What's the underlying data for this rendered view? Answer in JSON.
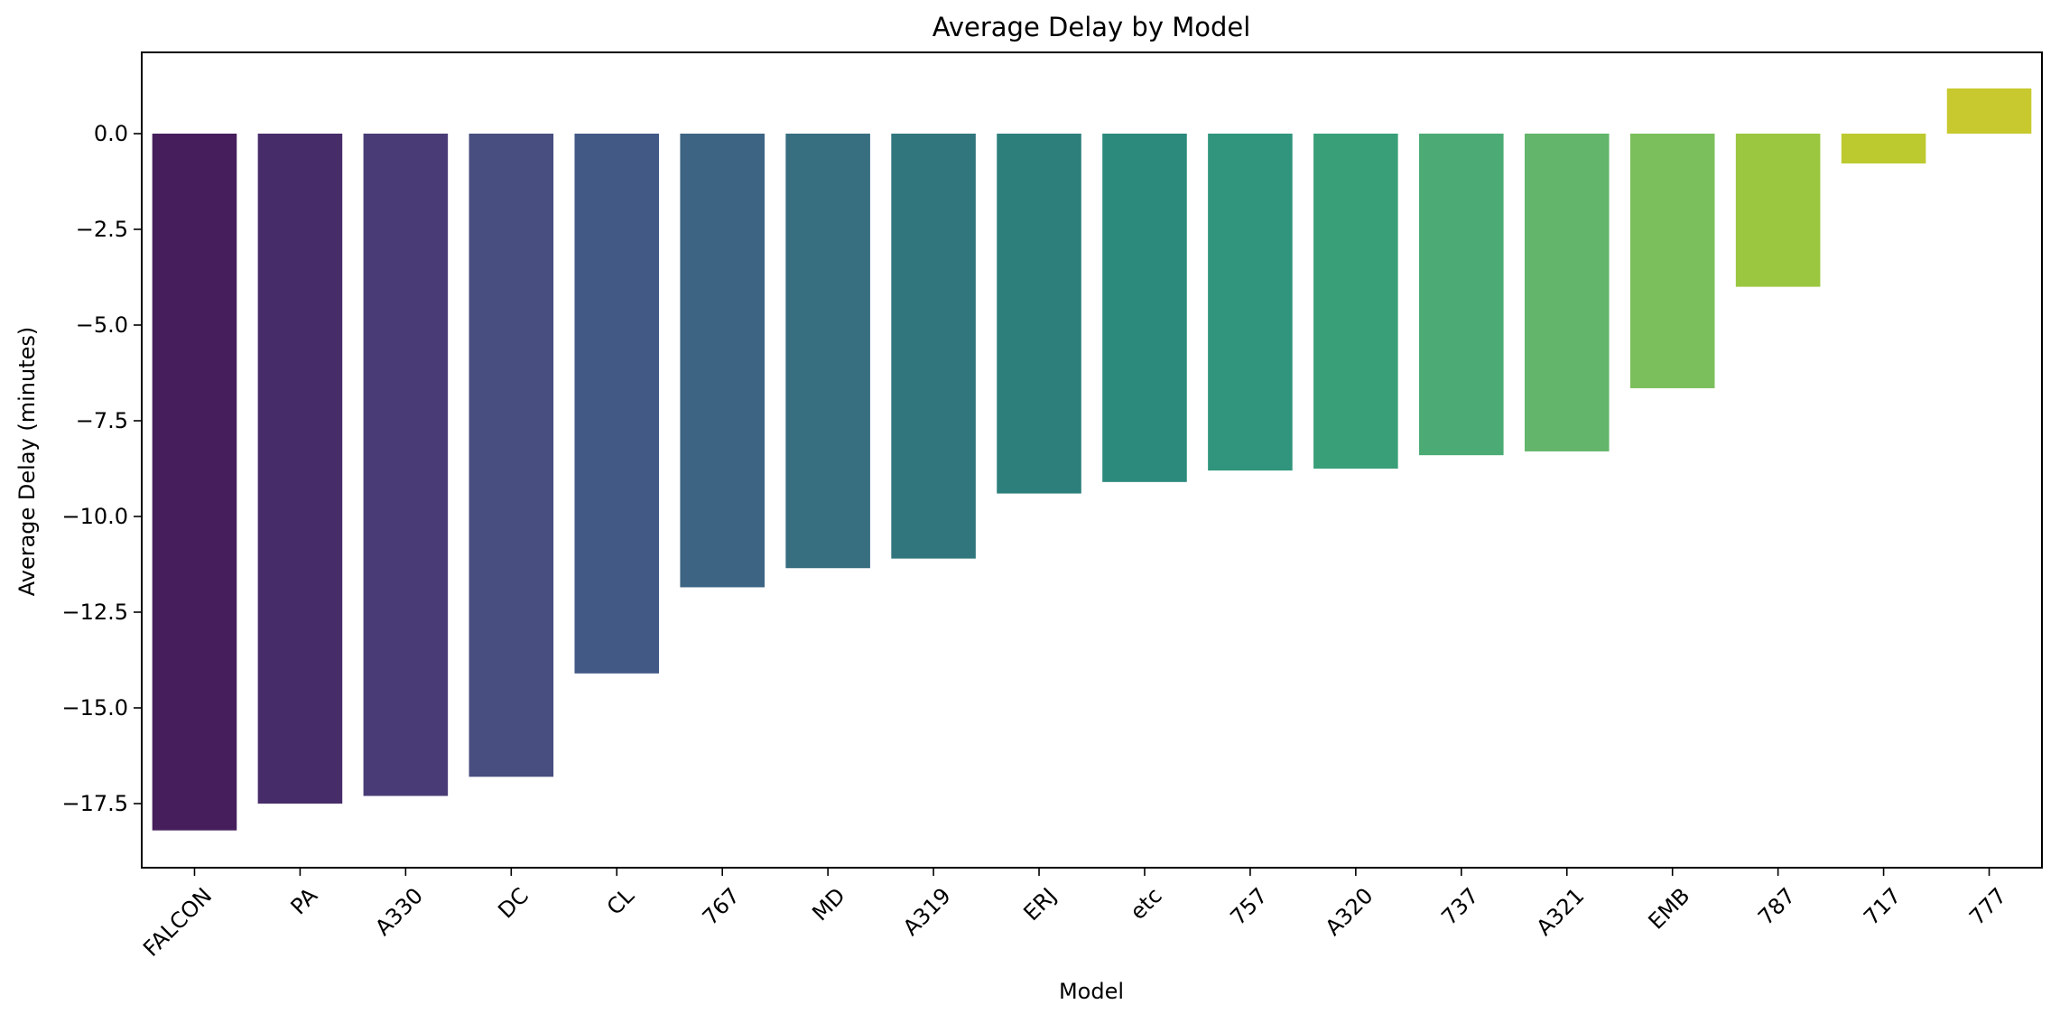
{
  "chart_data": {
    "type": "bar",
    "title": "Average Delay by Model",
    "xlabel": "Model",
    "ylabel": "Average Delay (minutes)",
    "categories": [
      "FALCON",
      "PA",
      "A330",
      "DC",
      "CL",
      "767",
      "MD",
      "A319",
      "ERJ",
      "etc",
      "757",
      "A320",
      "737",
      "A321",
      "EMB",
      "787",
      "717",
      "777"
    ],
    "values": [
      -18.2,
      -17.5,
      -17.3,
      -16.8,
      -14.1,
      -11.85,
      -11.35,
      -11.1,
      -9.4,
      -9.1,
      -8.8,
      -8.75,
      -8.4,
      -8.3,
      -6.65,
      -4.0,
      -0.78,
      1.18
    ],
    "colors": [
      "#461e5c",
      "#472c6a",
      "#493c76",
      "#484e7f",
      "#435985",
      "#3d6483",
      "#376e80",
      "#31767d",
      "#2d7f7b",
      "#2c8a7c",
      "#30957c",
      "#389f78",
      "#4cab74",
      "#62b56b",
      "#7bbf5c",
      "#9ac640",
      "#bdca2f",
      "#c7c92e"
    ],
    "yticks": [
      "0.0",
      "−2.5",
      "−5.0",
      "−7.5",
      "−10.0",
      "−12.5",
      "−15.0",
      "−17.5"
    ],
    "ylim": [
      -19.2,
      2.2
    ],
    "grid": false,
    "legend": "none"
  }
}
